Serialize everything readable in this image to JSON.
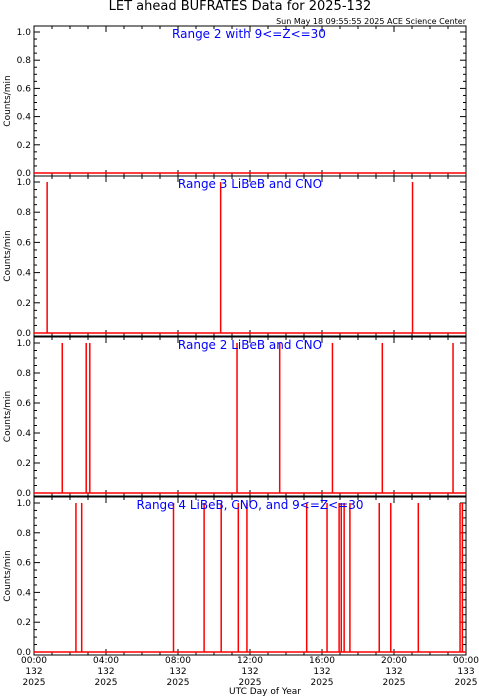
{
  "title": "LET ahead BUFRATES Data for 2025-132",
  "timestamp": "Sun May 18 09:55:55 2025 ACE Science Center",
  "xlabel": "UTC Day of Year",
  "colors": {
    "series": "#ff0000",
    "panel_title": "#0000ff",
    "axes": "#000000",
    "background": "#ffffff"
  },
  "chart_data": [
    {
      "type": "line",
      "title": "Range 2 with 9<=Z<=30",
      "ylabel": "Counts/min",
      "ylim": [
        0,
        1
      ],
      "yticks": [
        "0.0",
        "0.2",
        "0.4",
        "0.6",
        "0.8",
        "1.0"
      ],
      "xlim": [
        0,
        24
      ],
      "spikes_at_hours": []
    },
    {
      "type": "line",
      "title": "Range 3 LiBeB and CNO",
      "ylabel": "Counts/min",
      "ylim": [
        0,
        1
      ],
      "yticks": [
        "0.0",
        "0.2",
        "0.4",
        "0.6",
        "0.8",
        "1.0"
      ],
      "xlim": [
        0,
        24
      ],
      "spikes_at_hours": [
        0.73,
        10.37,
        21.03
      ]
    },
    {
      "type": "line",
      "title": "Range 2 LiBeB and CNO",
      "ylabel": "Counts/min",
      "ylim": [
        0,
        1
      ],
      "yticks": [
        "0.0",
        "0.2",
        "0.4",
        "0.6",
        "0.8",
        "1.0"
      ],
      "xlim": [
        0,
        24
      ],
      "spikes_at_hours": [
        1.57,
        2.9,
        3.1,
        11.28,
        13.65,
        16.58,
        19.35,
        23.28
      ]
    },
    {
      "type": "line",
      "title": "Range 4 LiBeB, CNO, and 9<=Z<=30",
      "ylabel": "Counts/min",
      "ylim": [
        0,
        1
      ],
      "yticks": [
        "0.0",
        "0.2",
        "0.4",
        "0.6",
        "0.8",
        "1.0"
      ],
      "xlim": [
        0,
        24
      ],
      "spikes_at_hours": [
        2.33,
        2.65,
        7.75,
        9.45,
        10.4,
        11.35,
        11.83,
        15.15,
        16.28,
        16.95,
        17.07,
        17.23,
        17.55,
        19.18,
        19.82,
        21.35,
        23.67,
        23.8
      ]
    }
  ],
  "xticks": [
    {
      "time": "00:00",
      "day": "132",
      "year": "2025"
    },
    {
      "time": "04:00",
      "day": "132",
      "year": "2025"
    },
    {
      "time": "08:00",
      "day": "132",
      "year": "2025"
    },
    {
      "time": "12:00",
      "day": "132",
      "year": "2025"
    },
    {
      "time": "16:00",
      "day": "132",
      "year": "2025"
    },
    {
      "time": "20:00",
      "day": "132",
      "year": "2025"
    },
    {
      "time": "00:00",
      "day": "133",
      "year": "2025"
    }
  ]
}
